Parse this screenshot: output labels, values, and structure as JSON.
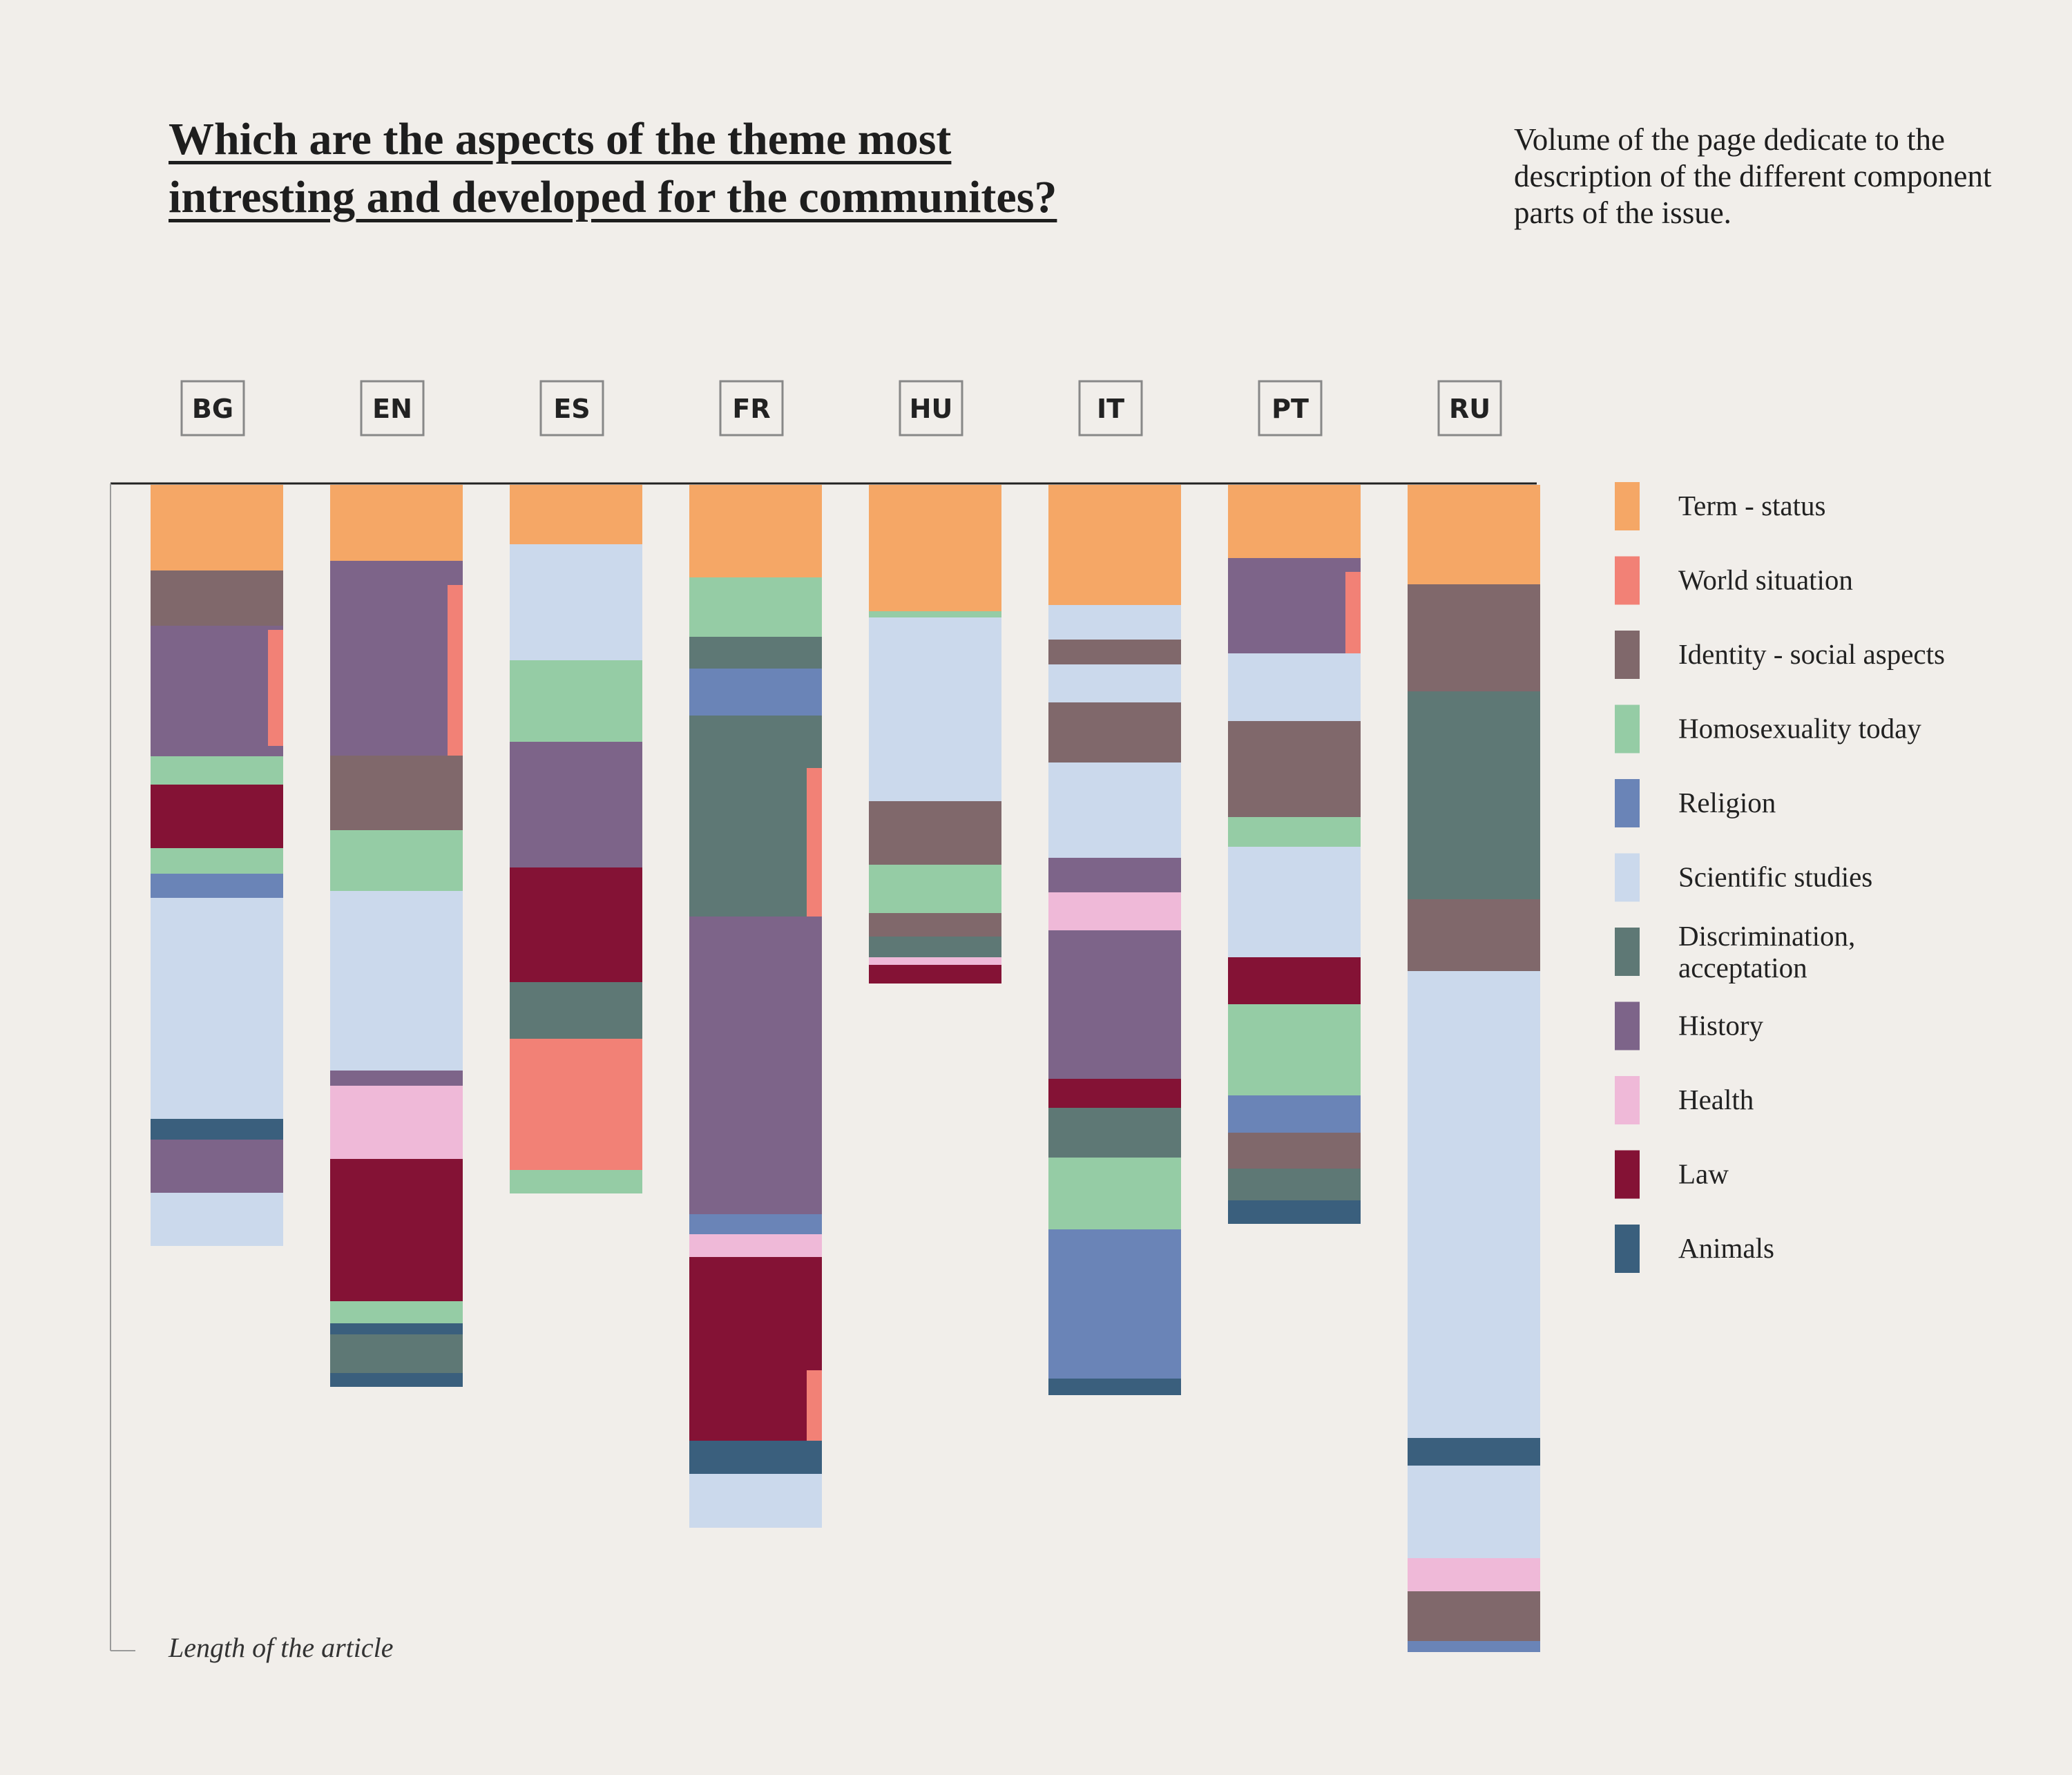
{
  "title": {
    "line1": "Which are the aspects of the theme most",
    "line2": "intresting and developed for the communites?"
  },
  "subtitle": "Volume of the page dedicate to the description of the different component parts of the issue.",
  "colors": {
    "term_status": "#f5a766",
    "world_situation": "#f28176",
    "identity_social": "#80686b",
    "homosexuality_today": "#95cca5",
    "religion": "#6a84b7",
    "scientific_studies": "#cbd9ec",
    "discrimination": "#5e7875",
    "history": "#7d6489",
    "health": "#efb9d8",
    "law": "#841235",
    "animals": "#3a5f7d"
  },
  "chart_data": {
    "type": "stacked-bar",
    "title": "Which are the aspects of the theme most intresting and developed for the communites?",
    "axis_label": "Length of the article",
    "value_units": "relative length of the article (top of bar = 0)",
    "max_length": 1690,
    "legend": [
      {
        "key": "term_status",
        "label": "Term - status"
      },
      {
        "key": "world_situation",
        "label": "World situation"
      },
      {
        "key": "identity_social",
        "label": "Identity - social aspects"
      },
      {
        "key": "homosexuality_today",
        "label": "Homosexuality today"
      },
      {
        "key": "religion",
        "label": "Religion"
      },
      {
        "key": "scientific_studies",
        "label": "Scientific studies"
      },
      {
        "key": "discrimination",
        "label": "Discrimination, acceptation",
        "lines": [
          "Discrimination,",
          "acceptation"
        ]
      },
      {
        "key": "history",
        "label": "History"
      },
      {
        "key": "health",
        "label": "Health"
      },
      {
        "key": "law",
        "label": "Law"
      },
      {
        "key": "animals",
        "label": "Animals"
      }
    ],
    "bars": [
      {
        "label": "BG",
        "segments": [
          {
            "cat": "term_status",
            "from": 0,
            "to": 124
          },
          {
            "cat": "identity_social",
            "from": 124,
            "to": 204
          },
          {
            "cat": "history",
            "from": 204,
            "to": 393
          },
          {
            "cat": "homosexuality_today",
            "from": 393,
            "to": 434
          },
          {
            "cat": "law",
            "from": 434,
            "to": 526
          },
          {
            "cat": "homosexuality_today",
            "from": 526,
            "to": 563
          },
          {
            "cat": "religion",
            "from": 563,
            "to": 598
          },
          {
            "cat": "scientific_studies",
            "from": 598,
            "to": 918
          },
          {
            "cat": "animals",
            "from": 918,
            "to": 948
          },
          {
            "cat": "history",
            "from": 948,
            "to": 1025
          },
          {
            "cat": "scientific_studies",
            "from": 1025,
            "to": 1102
          }
        ],
        "markers": [
          {
            "cat": "world_situation",
            "from": 210,
            "to": 378
          }
        ]
      },
      {
        "label": "EN",
        "segments": [
          {
            "cat": "term_status",
            "from": 0,
            "to": 110
          },
          {
            "cat": "history",
            "from": 110,
            "to": 392
          },
          {
            "cat": "identity_social",
            "from": 392,
            "to": 500
          },
          {
            "cat": "homosexuality_today",
            "from": 500,
            "to": 588
          },
          {
            "cat": "scientific_studies",
            "from": 588,
            "to": 848
          },
          {
            "cat": "history",
            "from": 848,
            "to": 870
          },
          {
            "cat": "health",
            "from": 870,
            "to": 976
          },
          {
            "cat": "law",
            "from": 976,
            "to": 1182
          },
          {
            "cat": "homosexuality_today",
            "from": 1182,
            "to": 1214
          },
          {
            "cat": "animals",
            "from": 1214,
            "to": 1230
          },
          {
            "cat": "discrimination",
            "from": 1230,
            "to": 1286
          },
          {
            "cat": "animals",
            "from": 1286,
            "to": 1306
          }
        ],
        "markers": [
          {
            "cat": "world_situation",
            "from": 145,
            "to": 392
          }
        ]
      },
      {
        "label": "ES",
        "segments": [
          {
            "cat": "term_status",
            "from": 0,
            "to": 86
          },
          {
            "cat": "scientific_studies",
            "from": 86,
            "to": 254
          },
          {
            "cat": "homosexuality_today",
            "from": 254,
            "to": 372
          },
          {
            "cat": "history",
            "from": 372,
            "to": 554
          },
          {
            "cat": "law",
            "from": 554,
            "to": 720
          },
          {
            "cat": "discrimination",
            "from": 720,
            "to": 802
          },
          {
            "cat": "world_situation",
            "from": 802,
            "to": 992
          },
          {
            "cat": "homosexuality_today",
            "from": 992,
            "to": 1026
          }
        ],
        "markers": []
      },
      {
        "label": "FR",
        "segments": [
          {
            "cat": "term_status",
            "from": 0,
            "to": 134
          },
          {
            "cat": "homosexuality_today",
            "from": 134,
            "to": 220
          },
          {
            "cat": "discrimination",
            "from": 220,
            "to": 266
          },
          {
            "cat": "religion",
            "from": 266,
            "to": 334
          },
          {
            "cat": "discrimination",
            "from": 334,
            "to": 625
          },
          {
            "cat": "history",
            "from": 625,
            "to": 1056
          },
          {
            "cat": "religion",
            "from": 1056,
            "to": 1085
          },
          {
            "cat": "health",
            "from": 1085,
            "to": 1118
          },
          {
            "cat": "law",
            "from": 1118,
            "to": 1384
          },
          {
            "cat": "animals",
            "from": 1384,
            "to": 1432
          },
          {
            "cat": "scientific_studies",
            "from": 1432,
            "to": 1510
          }
        ],
        "markers": [
          {
            "cat": "world_situation",
            "from": 410,
            "to": 625
          },
          {
            "cat": "world_situation",
            "from": 1282,
            "to": 1384
          }
        ]
      },
      {
        "label": "HU",
        "segments": [
          {
            "cat": "term_status",
            "from": 0,
            "to": 183
          },
          {
            "cat": "homosexuality_today",
            "from": 183,
            "to": 192
          },
          {
            "cat": "scientific_studies",
            "from": 192,
            "to": 458
          },
          {
            "cat": "identity_social",
            "from": 458,
            "to": 550
          },
          {
            "cat": "homosexuality_today",
            "from": 550,
            "to": 620
          },
          {
            "cat": "identity_social",
            "from": 620,
            "to": 654
          },
          {
            "cat": "discrimination",
            "from": 654,
            "to": 684
          },
          {
            "cat": "health",
            "from": 684,
            "to": 695
          },
          {
            "cat": "law",
            "from": 695,
            "to": 722
          }
        ],
        "markers": []
      },
      {
        "label": "IT",
        "segments": [
          {
            "cat": "term_status",
            "from": 0,
            "to": 174
          },
          {
            "cat": "scientific_studies",
            "from": 174,
            "to": 224
          },
          {
            "cat": "identity_social",
            "from": 224,
            "to": 260
          },
          {
            "cat": "scientific_studies",
            "from": 260,
            "to": 315
          },
          {
            "cat": "identity_social",
            "from": 315,
            "to": 402
          },
          {
            "cat": "scientific_studies",
            "from": 402,
            "to": 540
          },
          {
            "cat": "history",
            "from": 540,
            "to": 590
          },
          {
            "cat": "health",
            "from": 590,
            "to": 645
          },
          {
            "cat": "history",
            "from": 645,
            "to": 860
          },
          {
            "cat": "law",
            "from": 860,
            "to": 902
          },
          {
            "cat": "discrimination",
            "from": 902,
            "to": 974
          },
          {
            "cat": "homosexuality_today",
            "from": 974,
            "to": 1078
          },
          {
            "cat": "religion",
            "from": 1078,
            "to": 1294
          },
          {
            "cat": "animals",
            "from": 1294,
            "to": 1318
          }
        ],
        "markers": []
      },
      {
        "label": "PT",
        "segments": [
          {
            "cat": "term_status",
            "from": 0,
            "to": 106
          },
          {
            "cat": "history",
            "from": 106,
            "to": 244
          },
          {
            "cat": "scientific_studies",
            "from": 244,
            "to": 342
          },
          {
            "cat": "identity_social",
            "from": 342,
            "to": 481
          },
          {
            "cat": "homosexuality_today",
            "from": 481,
            "to": 524
          },
          {
            "cat": "scientific_studies",
            "from": 524,
            "to": 684
          },
          {
            "cat": "law",
            "from": 684,
            "to": 752
          },
          {
            "cat": "homosexuality_today",
            "from": 752,
            "to": 884
          },
          {
            "cat": "religion",
            "from": 884,
            "to": 938
          },
          {
            "cat": "identity_social",
            "from": 938,
            "to": 990
          },
          {
            "cat": "discrimination",
            "from": 990,
            "to": 1036
          },
          {
            "cat": "animals",
            "from": 1036,
            "to": 1070
          }
        ],
        "markers": [
          {
            "cat": "world_situation",
            "from": 126,
            "to": 244
          }
        ]
      },
      {
        "label": "RU",
        "segments": [
          {
            "cat": "term_status",
            "from": 0,
            "to": 144
          },
          {
            "cat": "identity_social",
            "from": 144,
            "to": 299
          },
          {
            "cat": "discrimination",
            "from": 299,
            "to": 600
          },
          {
            "cat": "identity_social",
            "from": 600,
            "to": 704
          },
          {
            "cat": "scientific_studies",
            "from": 704,
            "to": 1380
          },
          {
            "cat": "animals",
            "from": 1380,
            "to": 1420
          },
          {
            "cat": "scientific_studies",
            "from": 1420,
            "to": 1554
          },
          {
            "cat": "health",
            "from": 1554,
            "to": 1602
          },
          {
            "cat": "identity_social",
            "from": 1602,
            "to": 1674
          },
          {
            "cat": "religion",
            "from": 1674,
            "to": 1690
          }
        ],
        "markers": []
      }
    ]
  }
}
